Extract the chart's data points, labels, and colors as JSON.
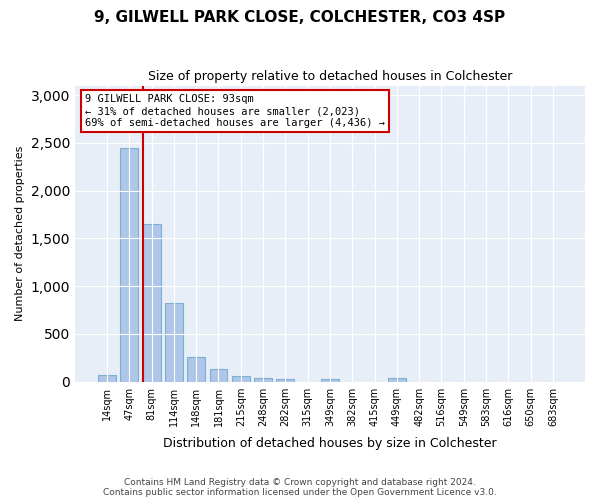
{
  "title1": "9, GILWELL PARK CLOSE, COLCHESTER, CO3 4SP",
  "title2": "Size of property relative to detached houses in Colchester",
  "xlabel": "Distribution of detached houses by size in Colchester",
  "ylabel": "Number of detached properties",
  "footnote1": "Contains HM Land Registry data © Crown copyright and database right 2024.",
  "footnote2": "Contains public sector information licensed under the Open Government Licence v3.0.",
  "annotation_line1": "9 GILWELL PARK CLOSE: 93sqm",
  "annotation_line2": "← 31% of detached houses are smaller (2,023)",
  "annotation_line3": "69% of semi-detached houses are larger (4,436) →",
  "bar_color": "#aec6e8",
  "bar_edge_color": "#7bafd4",
  "vline_color": "#cc0000",
  "annotation_box_edge_color": "#cc0000",
  "background_color": "#e8eef7",
  "categories": [
    "14sqm",
    "47sqm",
    "81sqm",
    "114sqm",
    "148sqm",
    "181sqm",
    "215sqm",
    "248sqm",
    "282sqm",
    "315sqm",
    "349sqm",
    "382sqm",
    "415sqm",
    "449sqm",
    "482sqm",
    "516sqm",
    "549sqm",
    "583sqm",
    "616sqm",
    "650sqm",
    "683sqm"
  ],
  "values": [
    70,
    2450,
    1650,
    820,
    260,
    130,
    60,
    40,
    30,
    0,
    30,
    0,
    0,
    40,
    0,
    0,
    0,
    0,
    0,
    0,
    0
  ],
  "vline_x": 2,
  "ylim": [
    0,
    3100
  ],
  "yticks": [
    0,
    500,
    1000,
    1500,
    2000,
    2500,
    3000
  ]
}
